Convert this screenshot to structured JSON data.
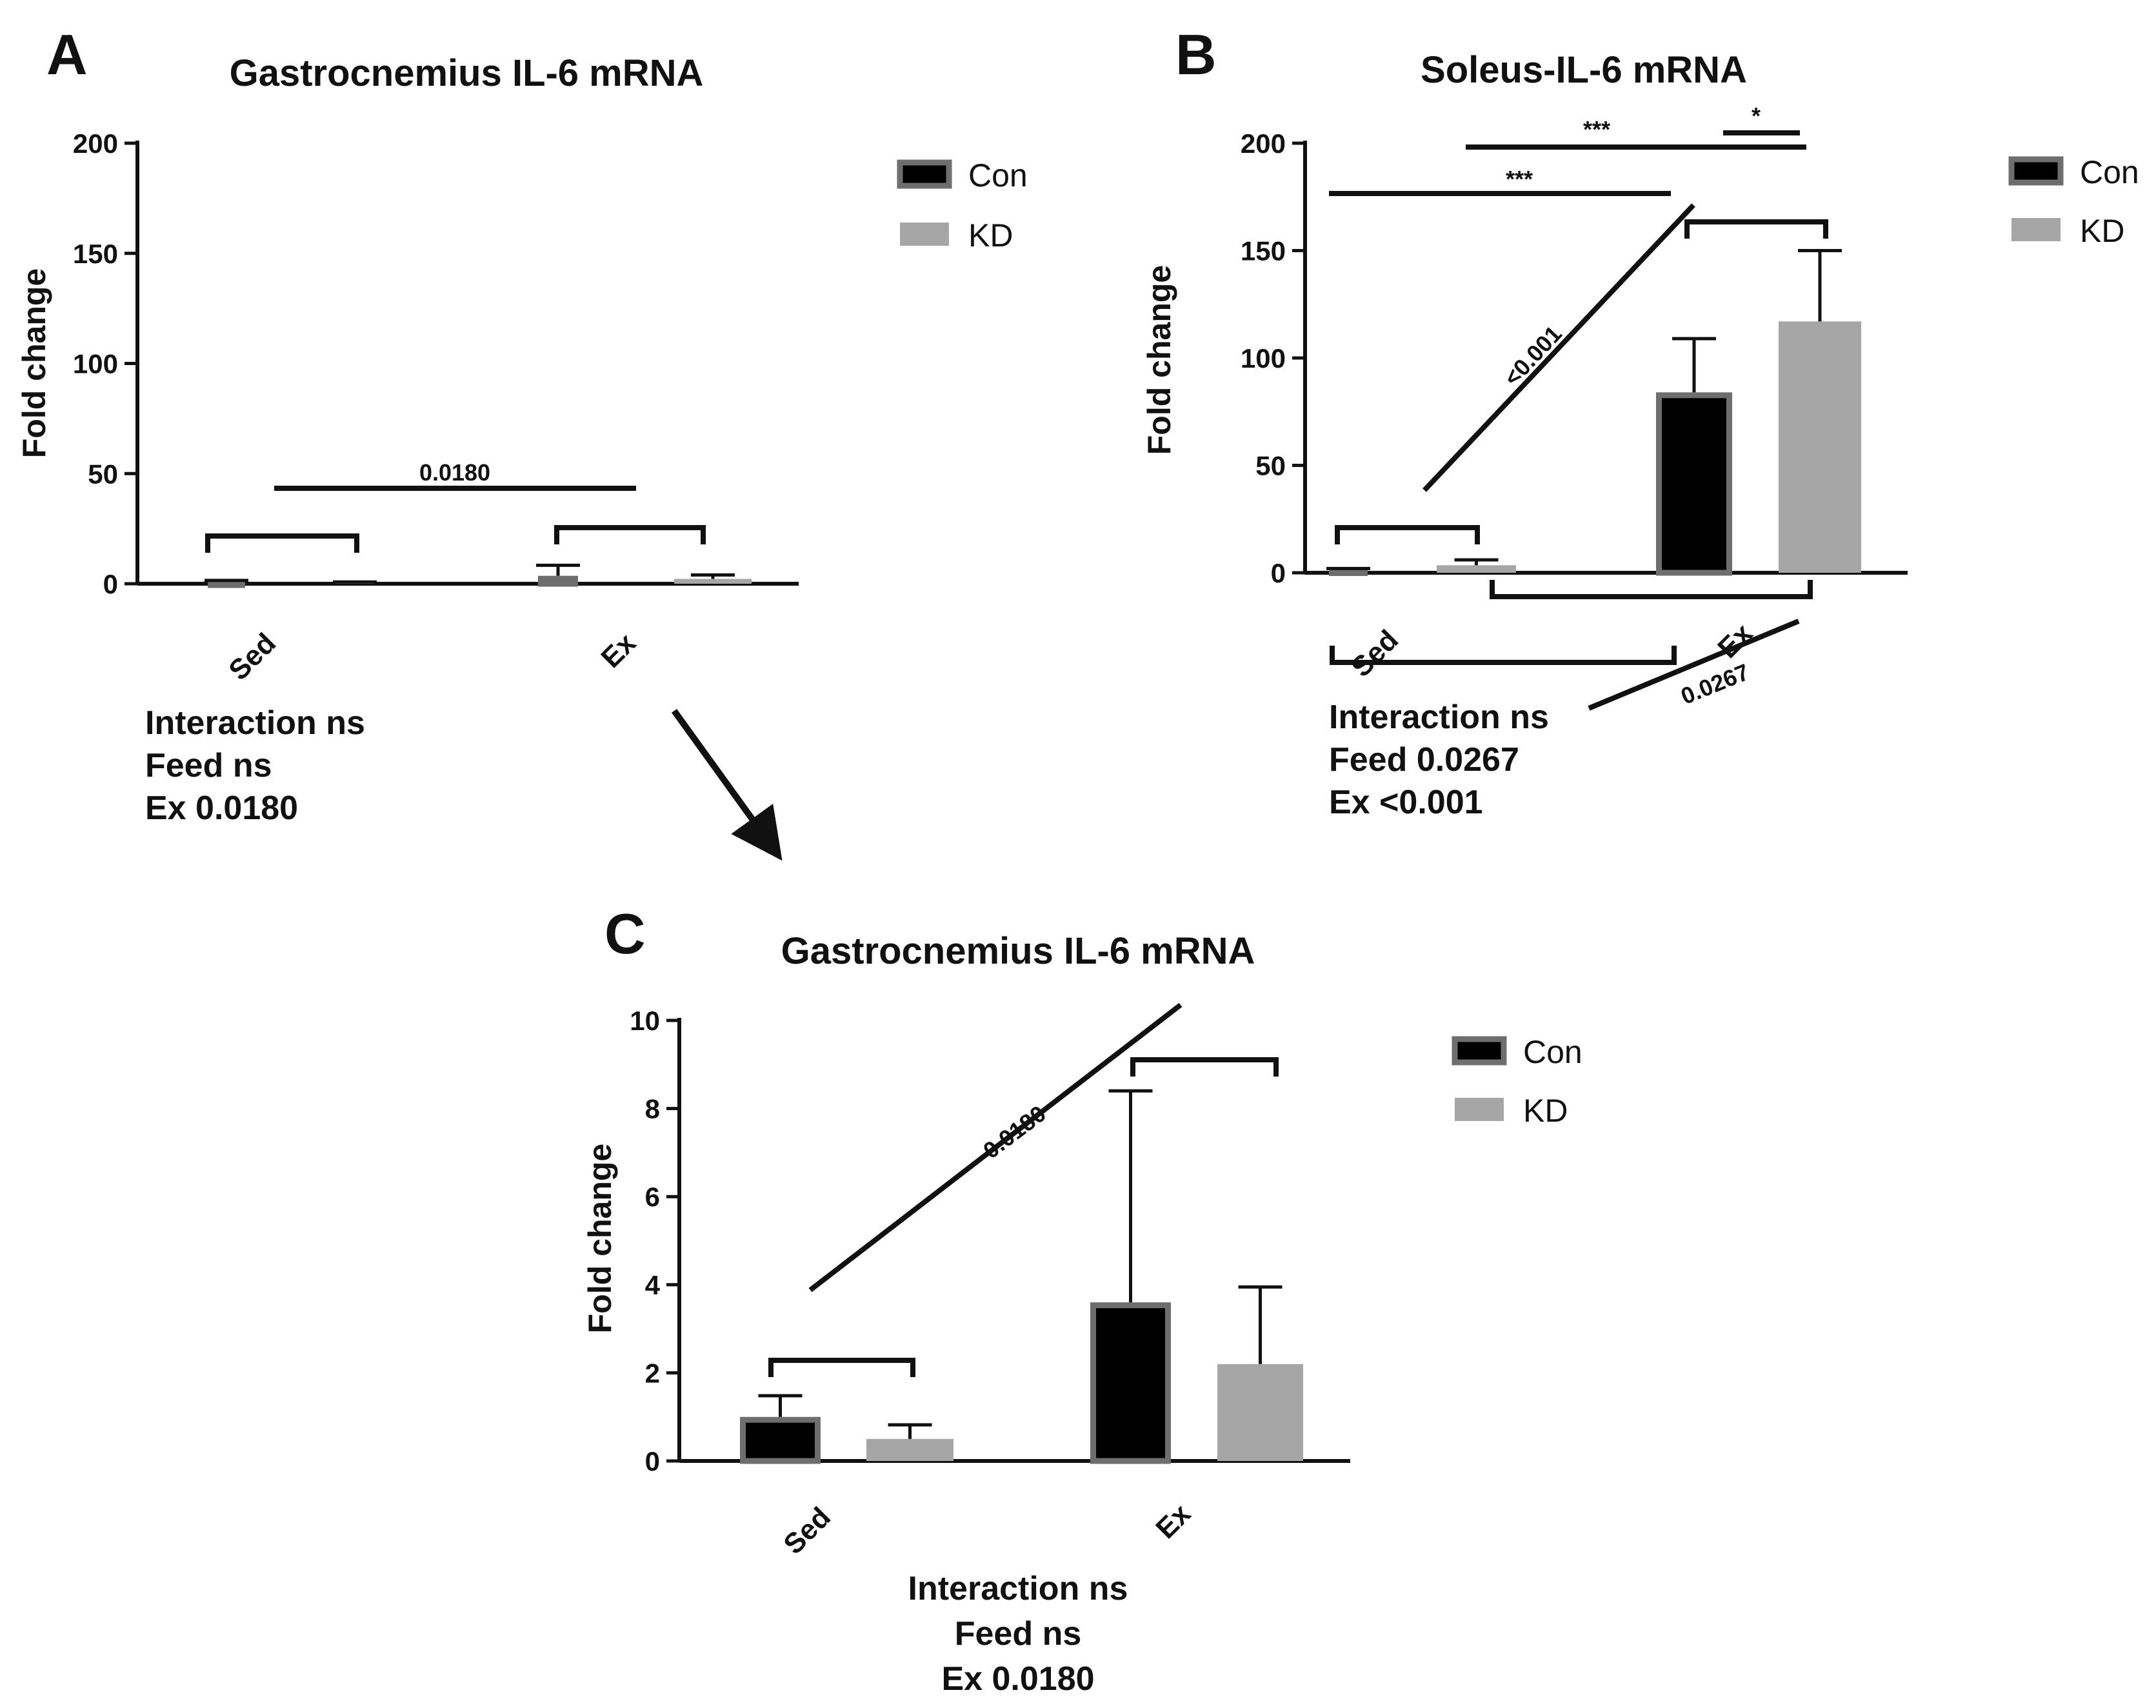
{
  "figure": {
    "arrow": "arrow-from-A-to-C",
    "colors": {
      "con_fill": "#000000",
      "con_border": "#6e6e6e",
      "kd_fill": "#a6a6a6",
      "ink": "#111111"
    }
  },
  "chart_data": [
    {
      "id": "A",
      "type": "bar",
      "panel_letter": "A",
      "title": "Gastrocnemius IL-6 mRNA",
      "xlabel": "",
      "ylabel": "Fold change",
      "ylim": [
        0,
        200
      ],
      "yticks": [
        "0",
        "50",
        "100",
        "150",
        "200"
      ],
      "categories": [
        "Sed",
        "Ex"
      ],
      "series": [
        {
          "name": "Con",
          "values": [
            1.0,
            3.6
          ],
          "errors": [
            0.5,
            4.8
          ]
        },
        {
          "name": "KD",
          "values": [
            0.5,
            2.2
          ],
          "errors": [
            0.3,
            1.8
          ]
        }
      ],
      "legend": [
        "Con",
        "KD"
      ],
      "annotations": [
        "0.0180"
      ],
      "stats": [
        "Interaction ns",
        "Feed ns",
        "Ex 0.0180"
      ]
    },
    {
      "id": "B",
      "type": "bar",
      "panel_letter": "B",
      "title": "Soleus-IL-6 mRNA",
      "xlabel": "",
      "ylabel": "Fold change",
      "ylim": [
        0,
        200
      ],
      "yticks": [
        "0",
        "50",
        "100",
        "150",
        "200"
      ],
      "categories": [
        "Sed",
        "Ex"
      ],
      "series": [
        {
          "name": "Con",
          "values": [
            1.5,
            84
          ],
          "errors": [
            0.5,
            25
          ]
        },
        {
          "name": "KD",
          "values": [
            3.5,
            117
          ],
          "errors": [
            2.5,
            33
          ]
        }
      ],
      "legend": [
        "Con",
        "KD"
      ],
      "annotations": [
        "***",
        "*",
        "***",
        "<0.001",
        "0.0267"
      ],
      "stats": [
        "Interaction ns",
        "Feed 0.0267",
        "Ex <0.001"
      ]
    },
    {
      "id": "C",
      "type": "bar",
      "panel_letter": "C",
      "title": "Gastrocnemius IL-6 mRNA",
      "xlabel": "",
      "ylabel": "Fold change",
      "ylim": [
        0,
        10
      ],
      "yticks": [
        "0",
        "2",
        "4",
        "6",
        "8",
        "10"
      ],
      "categories": [
        "Sed",
        "Ex"
      ],
      "series": [
        {
          "name": "Con",
          "values": [
            1.0,
            3.6
          ],
          "errors": [
            0.48,
            4.8
          ]
        },
        {
          "name": "KD",
          "values": [
            0.5,
            2.2
          ],
          "errors": [
            0.32,
            1.75
          ]
        }
      ],
      "legend": [
        "Con",
        "KD"
      ],
      "annotations": [
        "0.0180"
      ],
      "stats": [
        "Interaction ns",
        "Feed ns",
        "Ex 0.0180"
      ]
    }
  ]
}
